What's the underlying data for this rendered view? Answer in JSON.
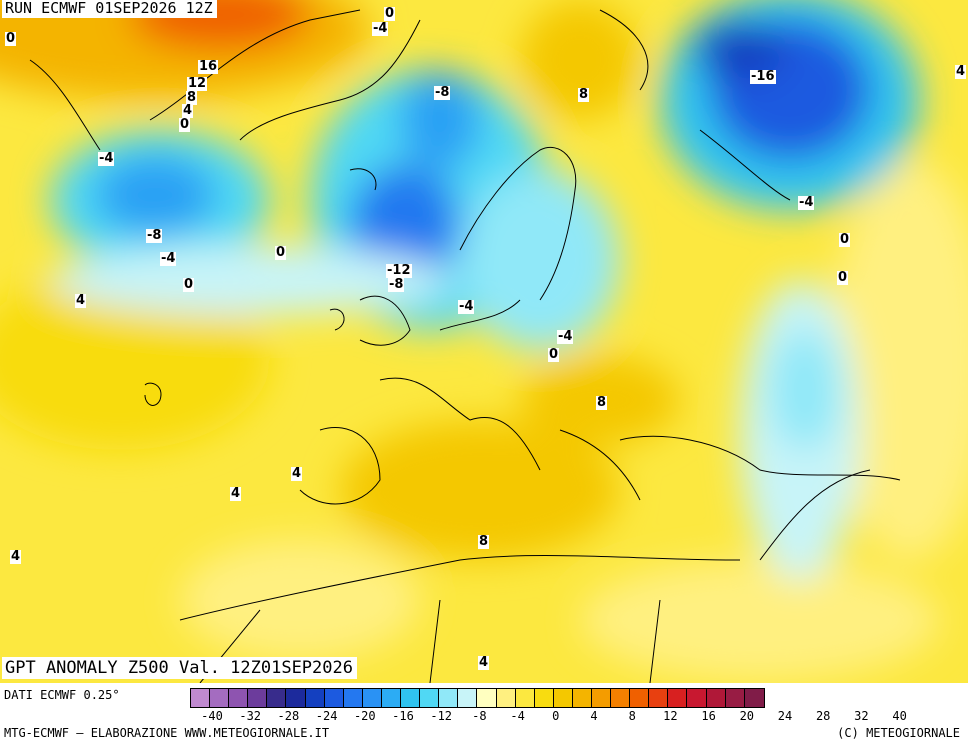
{
  "header": {
    "run_label": "RUN ECMWF 01SEP2026 12Z"
  },
  "map": {
    "title": "GPT ANOMALY Z500 Val. 12Z01SEP2026",
    "contour_labels": [
      {
        "id": "l1",
        "text": "0"
      },
      {
        "id": "l2",
        "text": "-4"
      },
      {
        "id": "l3",
        "text": "0"
      },
      {
        "id": "l4",
        "text": "16"
      },
      {
        "id": "l5",
        "text": "12"
      },
      {
        "id": "l6",
        "text": "8"
      },
      {
        "id": "l7",
        "text": "4"
      },
      {
        "id": "l8",
        "text": "0"
      },
      {
        "id": "l9",
        "text": "-8"
      },
      {
        "id": "l10",
        "text": "8"
      },
      {
        "id": "l11",
        "text": "-16"
      },
      {
        "id": "l12",
        "text": "4"
      },
      {
        "id": "l13",
        "text": "-4"
      },
      {
        "id": "l14",
        "text": "-8"
      },
      {
        "id": "l15",
        "text": "-4"
      },
      {
        "id": "l16",
        "text": "0"
      },
      {
        "id": "l17",
        "text": "0"
      },
      {
        "id": "l18",
        "text": "-12"
      },
      {
        "id": "l19",
        "text": "-8"
      },
      {
        "id": "l20",
        "text": "-4"
      },
      {
        "id": "l21",
        "text": "0"
      },
      {
        "id": "l22",
        "text": "-4"
      },
      {
        "id": "l23",
        "text": "0"
      },
      {
        "id": "l24",
        "text": "4"
      },
      {
        "id": "l25",
        "text": "0"
      },
      {
        "id": "l26",
        "text": "8"
      },
      {
        "id": "l27",
        "text": "4"
      },
      {
        "id": "l28",
        "text": "4"
      },
      {
        "id": "l29",
        "text": "8"
      },
      {
        "id": "l30",
        "text": "4"
      },
      {
        "id": "l31",
        "text": "-4"
      },
      {
        "id": "l32",
        "text": "4"
      }
    ]
  },
  "legend": {
    "source": "DATI ECMWF 0.25°",
    "colors": [
      "#c08ad0",
      "#a46cc0",
      "#8e54b0",
      "#6c3c9c",
      "#382c8c",
      "#1c2a9c",
      "#1440c0",
      "#1c5ae0",
      "#2478f0",
      "#2a92f4",
      "#2cacf4",
      "#30c4f0",
      "#50d8f4",
      "#90e8f8",
      "#c8f4f8",
      "#ffffc0",
      "#fff080",
      "#fce840",
      "#f8dc10",
      "#f4c800",
      "#f4b400",
      "#f49c00",
      "#f48000",
      "#f06000",
      "#e84010",
      "#d82020",
      "#c81830",
      "#b01838",
      "#981c44",
      "#801c48"
    ],
    "ticks": [
      "-40",
      "-32",
      "-28",
      "-24",
      "-20",
      "-16",
      "-12",
      "-8",
      "-4",
      "0",
      "4",
      "8",
      "12",
      "16",
      "20",
      "24",
      "28",
      "32",
      "40"
    ]
  },
  "footer": {
    "left": "MTG-ECMWF – ELABORAZIONE WWW.METEOGIORNALE.IT",
    "right": "(C) METEOGIORNALE"
  }
}
